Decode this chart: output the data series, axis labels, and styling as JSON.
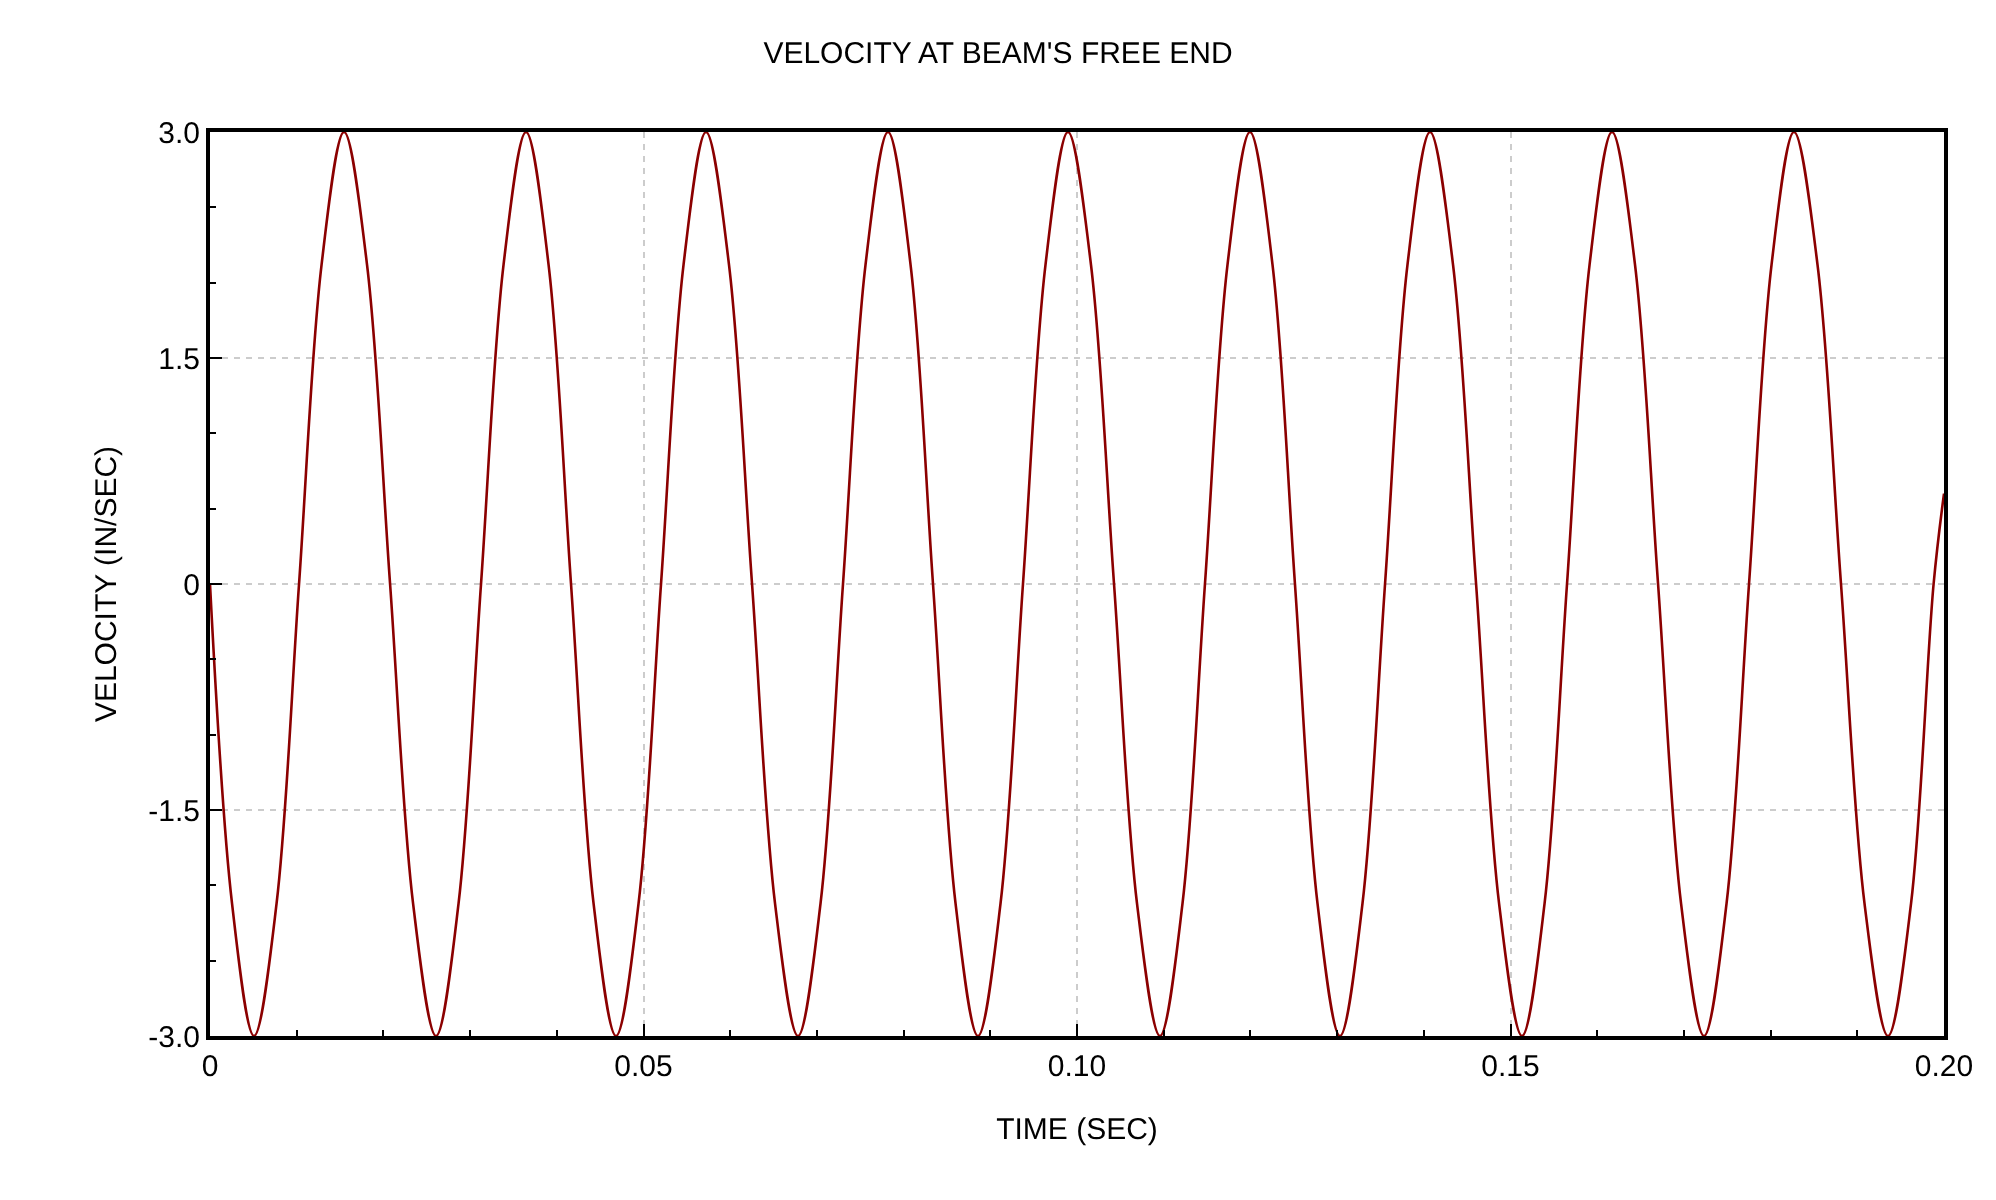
{
  "chart_data": {
    "type": "line",
    "title": "VELOCITY AT BEAM'S FREE END",
    "xlabel": "TIME (SEC)",
    "ylabel": "VELOCITY (IN/SEC)",
    "x": [
      0,
      0.00254,
      0.00508,
      0.00768,
      0.01027,
      0.01287,
      0.01546,
      0.01811,
      0.02077,
      0.02342,
      0.02607,
      0.02867,
      0.03126,
      0.03386,
      0.03645,
      0.03905,
      0.04164,
      0.04424,
      0.04683,
      0.04943,
      0.05202,
      0.05462,
      0.05721,
      0.05986,
      0.06252,
      0.06517,
      0.06782,
      0.07042,
      0.07301,
      0.07561,
      0.0782,
      0.0808,
      0.08339,
      0.08599,
      0.08858,
      0.09118,
      0.09377,
      0.09637,
      0.09896,
      0.10161,
      0.10427,
      0.10692,
      0.10957,
      0.11217,
      0.11476,
      0.11736,
      0.11995,
      0.12255,
      0.12514,
      0.12774,
      0.13033,
      0.13293,
      0.13553,
      0.13812,
      0.14072,
      0.14337,
      0.14603,
      0.14868,
      0.15133,
      0.15393,
      0.15652,
      0.15912,
      0.16171,
      0.16436,
      0.16702,
      0.16967,
      0.17232,
      0.17492,
      0.17751,
      0.18011,
      0.1827,
      0.18541,
      0.18812,
      0.19083,
      0.19354,
      0.1962,
      0.1988,
      0.2
    ],
    "series": [
      {
        "color": "#8b0000",
        "values": [
          0,
          -2.12,
          -3.0,
          -2.12,
          0,
          2.12,
          3.0,
          2.12,
          0,
          -2.12,
          -3.0,
          -2.12,
          0,
          2.12,
          3.0,
          2.12,
          0,
          -2.12,
          -3.0,
          -2.12,
          0,
          2.12,
          3.0,
          2.12,
          0,
          -2.12,
          -3.0,
          -2.12,
          0,
          2.12,
          3.0,
          2.12,
          0,
          -2.12,
          -3.0,
          -2.12,
          0,
          2.12,
          3.0,
          2.12,
          0,
          -2.12,
          -3.0,
          -2.12,
          0,
          2.12,
          3.0,
          2.12,
          0,
          -2.12,
          -3.0,
          -2.12,
          0,
          2.12,
          3.0,
          2.12,
          0,
          -2.12,
          -3.0,
          -2.12,
          0,
          2.12,
          3.0,
          2.12,
          0,
          -2.12,
          -3.0,
          -2.12,
          0,
          2.12,
          3.0,
          2.12,
          0,
          -2.12,
          -3.0,
          -2.12,
          0,
          0.6
        ]
      }
    ],
    "xlim": [
      0,
      0.2
    ],
    "xticks": [
      0,
      0.05,
      {
        "value": 0.1,
        "label": "0.10"
      },
      0.15,
      {
        "value": 0.2,
        "label": "0.20"
      }
    ],
    "ylim": [
      -3.0,
      3.0
    ],
    "yticks": [
      {
        "value": -3,
        "label": "-3.0"
      },
      -1.5,
      0,
      1.5,
      {
        "value": 3,
        "label": "3.0"
      }
    ],
    "grid": true,
    "marker": "none",
    "line_style": "solid"
  }
}
